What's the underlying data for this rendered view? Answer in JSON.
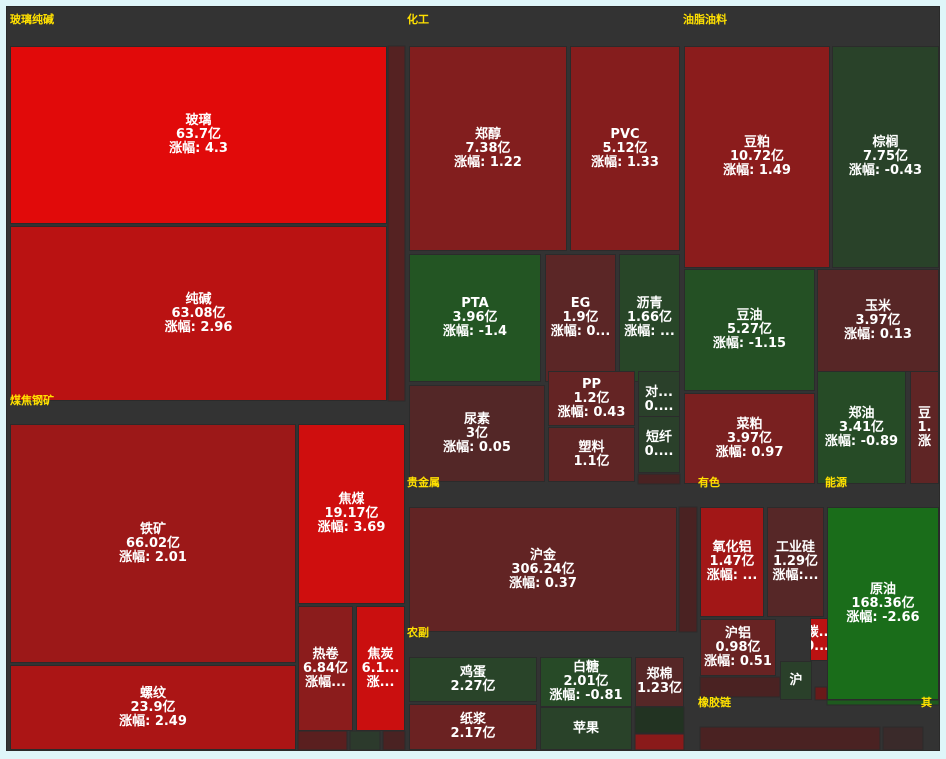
{
  "chart_data": {
    "type": "treemap",
    "groups": [
      {
        "name": "玻璃纯碱"
      },
      {
        "name": "化工"
      },
      {
        "name": "油脂油料"
      },
      {
        "name": "煤焦钢矿"
      },
      {
        "name": "贵金属"
      },
      {
        "name": "有色"
      },
      {
        "name": "能源"
      },
      {
        "name": "农副"
      },
      {
        "name": "橡胶链"
      },
      {
        "name": "其"
      }
    ],
    "tiles": [
      {
        "name": "玻璃",
        "amount": "63.7亿",
        "change": "涨幅: 4.3",
        "value": 4.3
      },
      {
        "name": "纯碱",
        "amount": "63.08亿",
        "change": "涨幅: 2.96",
        "value": 2.96
      },
      {
        "name": "郑醇",
        "amount": "7.38亿",
        "change": "涨幅: 1.22",
        "value": 1.22
      },
      {
        "name": "PVC",
        "amount": "5.12亿",
        "change": "涨幅: 1.33",
        "value": 1.33
      },
      {
        "name": "PTA",
        "amount": "3.96亿",
        "change": "涨幅: -1.4",
        "value": -1.4
      },
      {
        "name": "EG",
        "amount": "1.9亿",
        "change": "涨幅: 0...",
        "value": 0.2
      },
      {
        "name": "沥青",
        "amount": "1.66亿",
        "change": "涨幅: ...",
        "value": -0.6
      },
      {
        "name": "尿素",
        "amount": "3亿",
        "change": "涨幅: 0.05",
        "value": 0.05
      },
      {
        "name": "PP",
        "amount": "1.2亿",
        "change": "涨幅: 0.43",
        "value": 0.43
      },
      {
        "name": "对...",
        "amount": "0....",
        "change": "",
        "value": -0.3
      },
      {
        "name": "塑料",
        "amount": "1.1亿",
        "change": "",
        "value": 0.3
      },
      {
        "name": "短纤",
        "amount": "0....",
        "change": "",
        "value": -0.3
      },
      {
        "name": "豆粕",
        "amount": "10.72亿",
        "change": "涨幅: 1.49",
        "value": 1.49
      },
      {
        "name": "棕榈",
        "amount": "7.75亿",
        "change": "涨幅: -0.43",
        "value": -0.43
      },
      {
        "name": "豆油",
        "amount": "5.27亿",
        "change": "涨幅: -1.15",
        "value": -1.15
      },
      {
        "name": "玉米",
        "amount": "3.97亿",
        "change": "涨幅: 0.13",
        "value": 0.13
      },
      {
        "name": "菜粕",
        "amount": "3.97亿",
        "change": "涨幅: 0.97",
        "value": 0.97
      },
      {
        "name": "郑油",
        "amount": "3.41亿",
        "change": "涨幅: -0.89",
        "value": -0.89
      },
      {
        "name": "豆",
        "amount": "1.",
        "change": "涨",
        "value": 0.3
      },
      {
        "name": "铁矿",
        "amount": "66.02亿",
        "change": "涨幅: 2.01",
        "value": 2.01
      },
      {
        "name": "焦煤",
        "amount": "19.17亿",
        "change": "涨幅: 3.69",
        "value": 3.69
      },
      {
        "name": "热卷",
        "amount": "6.84亿",
        "change": "涨幅...",
        "value": 1.5
      },
      {
        "name": "焦炭",
        "amount": "6.1...",
        "change": "涨...",
        "value": 3.5
      },
      {
        "name": "螺纹",
        "amount": "23.9亿",
        "change": "涨幅: 2.49",
        "value": 2.49
      },
      {
        "name": "沪金",
        "amount": "306.24亿",
        "change": "涨幅: 0.37",
        "value": 0.37
      },
      {
        "name": "氧化铝",
        "amount": "1.47亿",
        "change": "涨幅: ...",
        "value": 2.2
      },
      {
        "name": "工业硅",
        "amount": "1.29亿",
        "change": "涨幅:...",
        "value": 0.1
      },
      {
        "name": "沪铝",
        "amount": "0.98亿",
        "change": "涨幅: 0.51",
        "value": 0.51
      },
      {
        "name": "碳...",
        "amount": "0....",
        "change": "",
        "value": 3.0
      },
      {
        "name": "沪",
        "amount": "",
        "change": "",
        "value": -0.3
      },
      {
        "name": "原油",
        "amount": "168.36亿",
        "change": "涨幅: -2.66",
        "value": -2.66
      },
      {
        "name": "鸡蛋",
        "amount": "2.27亿",
        "change": "",
        "value": -0.5
      },
      {
        "name": "白糖",
        "amount": "2.01亿",
        "change": "涨幅: -0.81",
        "value": -0.81
      },
      {
        "name": "郑棉",
        "amount": "1.23亿",
        "change": "",
        "value": 0.1
      },
      {
        "name": "纸浆",
        "amount": "2.17亿",
        "change": "",
        "value": 0.6
      },
      {
        "name": "苹果",
        "amount": "",
        "change": "",
        "value": -0.4
      }
    ]
  }
}
